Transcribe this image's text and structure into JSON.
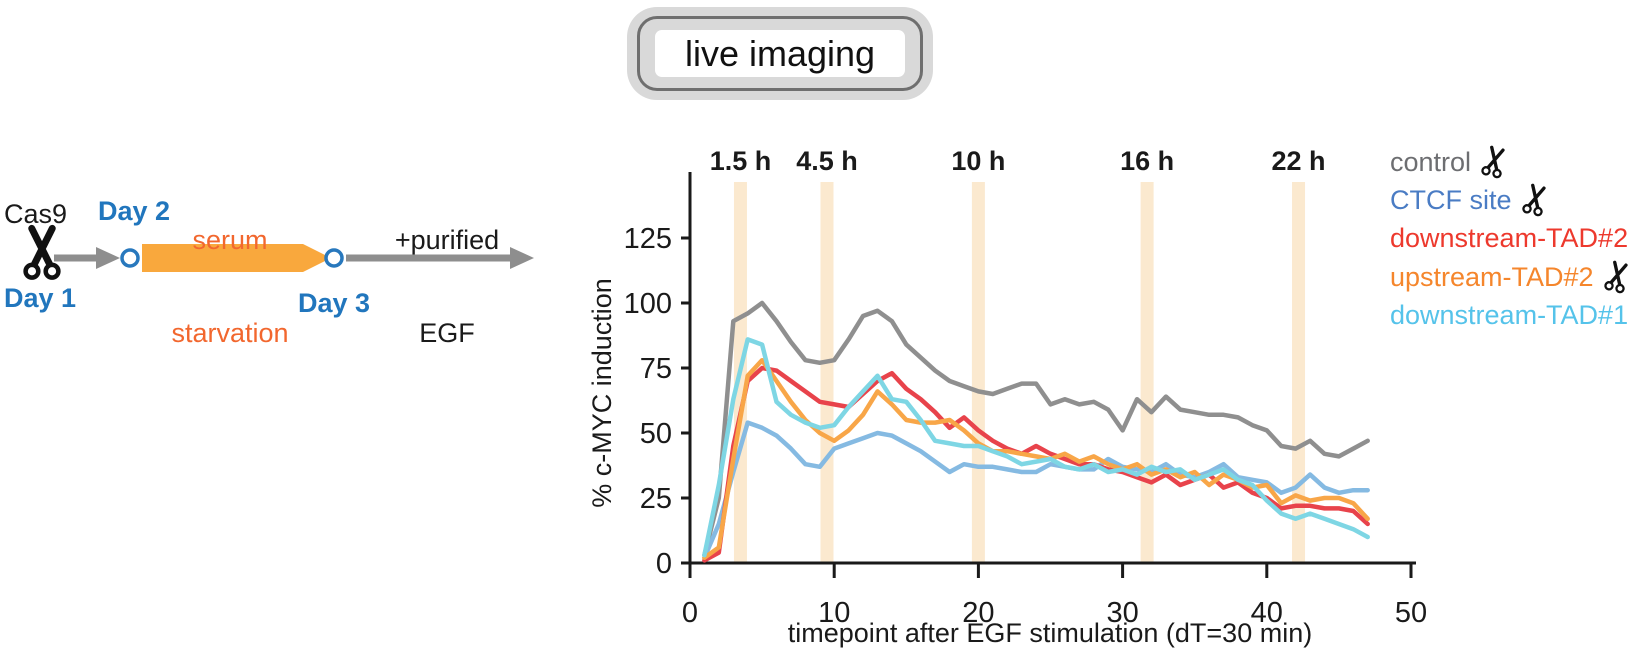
{
  "title_box": {
    "label": "live imaging"
  },
  "schematic": {
    "cas9_label": "Cas9",
    "day1": "Day 1",
    "day2": "Day 2",
    "day3": "Day 3",
    "serum_line1": "serum",
    "serum_line2": "starvation",
    "egf_line1": "+purified",
    "egf_line2": "EGF",
    "colors": {
      "day_blue": "#2176bd",
      "serum_text": "#f2672e",
      "banner_orange": "#f9a83d",
      "arrow_gray": "#8e8e8e",
      "circle_blue": "#2878bd",
      "scissors_black": "#111111"
    }
  },
  "chart_data": {
    "type": "line",
    "xlabel": "timepoint after EGF stimulation (dT=30 min)",
    "ylabel": "% c-MYC induction",
    "xlim": [
      0,
      50
    ],
    "ylim": [
      0,
      150
    ],
    "xticks": [
      0,
      10,
      20,
      30,
      40,
      50
    ],
    "yticks": [
      0,
      25,
      50,
      75,
      100,
      125
    ],
    "grid": false,
    "legend_position": "right-outside",
    "band_color": "#fbe9cf",
    "timepoint_bands": [
      {
        "label": "1.5 h",
        "t": 3.5
      },
      {
        "label": "4.5 h",
        "t": 9.5
      },
      {
        "label": "10 h",
        "t": 20.0
      },
      {
        "label": "16 h",
        "t": 31.7
      },
      {
        "label": "22 h",
        "t": 42.2
      }
    ],
    "x": [
      1,
      2,
      3,
      4,
      5,
      6,
      7,
      8,
      9,
      10,
      11,
      12,
      13,
      14,
      15,
      16,
      17,
      18,
      19,
      20,
      21,
      22,
      23,
      24,
      25,
      26,
      27,
      28,
      29,
      30,
      31,
      32,
      33,
      34,
      35,
      36,
      37,
      38,
      39,
      40,
      41,
      42,
      43,
      44,
      45,
      46,
      47
    ],
    "series": [
      {
        "name": "control",
        "line_color": "#8f8f8f",
        "legend_color": "#6d6e71",
        "values": [
          3,
          25,
          93,
          96,
          100,
          93,
          85,
          78,
          77,
          78,
          86,
          95,
          97,
          93,
          84,
          79,
          74,
          70,
          68,
          66,
          65,
          67,
          69,
          69,
          61,
          63,
          61,
          62,
          59,
          51,
          63,
          58,
          64,
          59,
          58,
          57,
          57,
          56,
          53,
          51,
          45,
          44,
          47,
          42,
          41,
          44,
          47
        ]
      },
      {
        "name": "CTCF site",
        "line_color": "#85bae2",
        "legend_color": "#4a7cc4",
        "values": [
          2,
          15,
          35,
          54,
          52,
          49,
          44,
          38,
          37,
          44,
          46,
          48,
          50,
          49,
          46,
          43,
          39,
          35,
          38,
          37,
          37,
          36,
          35,
          35,
          38,
          37,
          36,
          36,
          40,
          37,
          36,
          35,
          38,
          34,
          33,
          35,
          38,
          33,
          32,
          31,
          27,
          29,
          34,
          29,
          27,
          28,
          28
        ]
      },
      {
        "name": "downstream-TAD#2",
        "line_color": "#e8434b",
        "legend_color": "#ed392d",
        "values": [
          1,
          4,
          45,
          70,
          75,
          74,
          70,
          66,
          62,
          61,
          60,
          65,
          70,
          73,
          67,
          63,
          58,
          52,
          56,
          51,
          47,
          44,
          42,
          45,
          42,
          40,
          38,
          38,
          36,
          35,
          33,
          31,
          34,
          30,
          32,
          34,
          29,
          31,
          27,
          25,
          21,
          22,
          22,
          21,
          21,
          20,
          15
        ]
      },
      {
        "name": "upstream-TAD#2",
        "line_color": "#f8a648",
        "legend_color": "#f5862c",
        "values": [
          2,
          6,
          40,
          72,
          78,
          70,
          62,
          55,
          50,
          47,
          51,
          57,
          66,
          61,
          55,
          54,
          54,
          55,
          51,
          46,
          43,
          43,
          42,
          41,
          40,
          42,
          39,
          41,
          38,
          36,
          38,
          34,
          36,
          33,
          35,
          30,
          34,
          32,
          29,
          30,
          23,
          26,
          24,
          25,
          25,
          23,
          17
        ]
      },
      {
        "name": "downstream-TAD#1",
        "line_color": "#7ed6e4",
        "legend_color": "#55c3ea",
        "values": [
          3,
          30,
          63,
          86,
          84,
          62,
          57,
          54,
          52,
          53,
          60,
          66,
          72,
          63,
          62,
          55,
          47,
          46,
          45,
          45,
          43,
          41,
          38,
          39,
          40,
          37,
          36,
          38,
          35,
          36,
          34,
          37,
          35,
          36,
          32,
          34,
          36,
          32,
          30,
          24,
          19,
          17,
          19,
          17,
          15,
          13,
          10
        ]
      }
    ]
  }
}
